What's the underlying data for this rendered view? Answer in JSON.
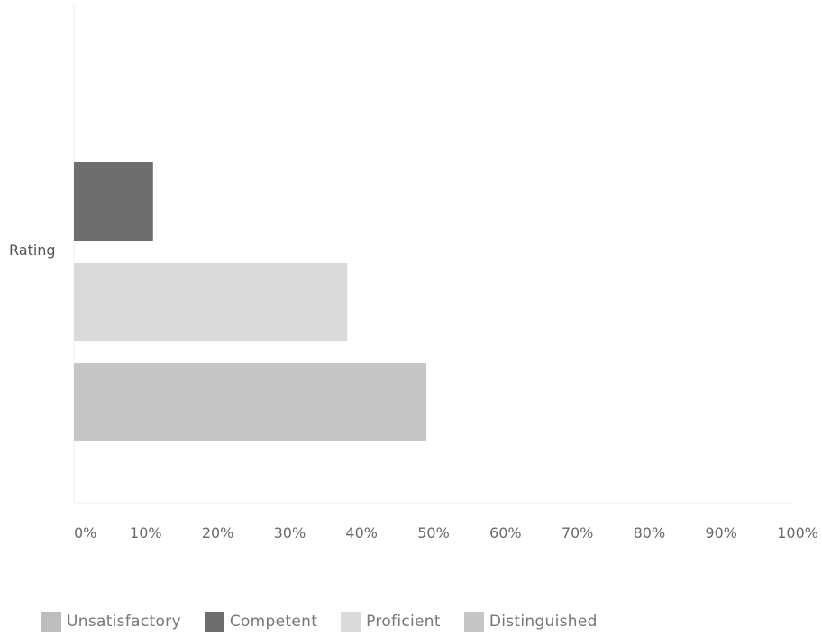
{
  "chart_data": {
    "type": "bar",
    "orientation": "horizontal",
    "ylabel": "Rating",
    "categories": [
      "Rating"
    ],
    "series": [
      {
        "name": "Unsatisfactory",
        "values": [
          0
        ],
        "color": "#bdbdbd"
      },
      {
        "name": "Competent",
        "values": [
          11
        ],
        "color": "#6e6e6e"
      },
      {
        "name": "Proficient",
        "values": [
          38
        ],
        "color": "#dadada"
      },
      {
        "name": "Distinguished",
        "values": [
          49
        ],
        "color": "#c6c6c6"
      }
    ],
    "xlim": [
      0,
      100
    ],
    "x_ticks": [
      "0%",
      "10%",
      "20%",
      "30%",
      "40%",
      "50%",
      "60%",
      "70%",
      "80%",
      "90%",
      "100%"
    ],
    "legend_position": "bottom-left",
    "grid": false
  }
}
